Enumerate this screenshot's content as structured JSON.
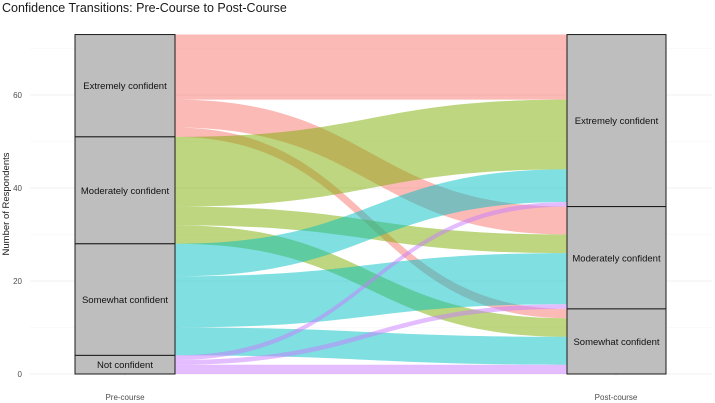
{
  "chart_data": {
    "type": "alluvial",
    "title": "Confidence Transitions: Pre-Course to Post-Course",
    "ylabel": "Number of Respondents",
    "xlabel": "",
    "ylim": [
      0,
      73
    ],
    "yticks": [
      0,
      20,
      40,
      60
    ],
    "axes": [
      "Pre-course",
      "Post-course"
    ],
    "levels": [
      "Extremely confident",
      "Moderately confident",
      "Somewhat confident",
      "Not confident"
    ],
    "colors": {
      "Extremely confident": "#F8766D",
      "Moderately confident": "#7CAE00",
      "Somewhat confident": "#00BFC4",
      "Not confident": "#C77CFF"
    },
    "pre_totals": [
      22,
      23,
      24,
      4
    ],
    "post_totals": [
      37,
      22,
      14,
      0
    ],
    "flows": [
      {
        "from": "Extremely confident",
        "to": "Extremely confident",
        "value": 14
      },
      {
        "from": "Extremely confident",
        "to": "Moderately confident",
        "value": 6
      },
      {
        "from": "Extremely confident",
        "to": "Somewhat confident",
        "value": 2
      },
      {
        "from": "Moderately confident",
        "to": "Extremely confident",
        "value": 15
      },
      {
        "from": "Moderately confident",
        "to": "Moderately confident",
        "value": 4
      },
      {
        "from": "Moderately confident",
        "to": "Somewhat confident",
        "value": 4
      },
      {
        "from": "Somewhat confident",
        "to": "Extremely confident",
        "value": 7
      },
      {
        "from": "Somewhat confident",
        "to": "Moderately confident",
        "value": 11
      },
      {
        "from": "Somewhat confident",
        "to": "Somewhat confident",
        "value": 6
      },
      {
        "from": "Not confident",
        "to": "Extremely confident",
        "value": 1
      },
      {
        "from": "Not confident",
        "to": "Moderately confident",
        "value": 1
      },
      {
        "from": "Not confident",
        "to": "Somewhat confident",
        "value": 2
      }
    ]
  }
}
